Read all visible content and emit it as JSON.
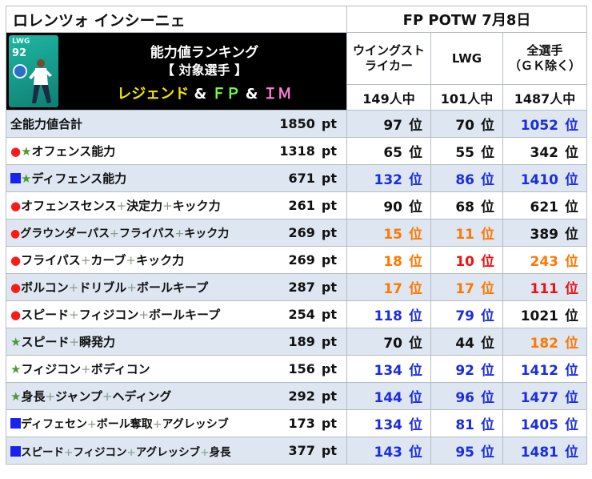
{
  "header": {
    "player_name": "ロレンツォ インシーニェ",
    "event": "FP POTW 7月8日"
  },
  "card": {
    "position": "LWG",
    "rating": "92"
  },
  "banner": {
    "title": "能力値ランキング",
    "subtitle": "【 対象選手 】",
    "legend": "レジェンド",
    "amp": "&",
    "fp": "ＦＰ",
    "im": "ＩＭ"
  },
  "columns": [
    {
      "label_line1": "ウイングスト",
      "label_line2": "ライカー",
      "count": "149人中"
    },
    {
      "label_line1": "LWG",
      "label_line2": "",
      "count": "101人中"
    },
    {
      "label_line1": "全選手",
      "label_line2": "（ＧＫ除く）",
      "count": "1487人中"
    }
  ],
  "rank_unit": "位",
  "value_unit": "pt",
  "colors": {
    "blue": "#1b2de0",
    "orange": "#ff7800",
    "red": "#ee1111",
    "row_alt": "#dde6f1"
  },
  "rows": [
    {
      "marks": [],
      "parts": [
        "全能力値合計"
      ],
      "value": "1850",
      "ranks": [
        {
          "v": "97",
          "c": "black"
        },
        {
          "v": "70",
          "c": "black"
        },
        {
          "v": "1052",
          "c": "blue"
        }
      ]
    },
    {
      "marks": [
        "dot",
        "star"
      ],
      "parts": [
        "オフェンス能力"
      ],
      "value": "1318",
      "ranks": [
        {
          "v": "65",
          "c": "black"
        },
        {
          "v": "55",
          "c": "black"
        },
        {
          "v": "342",
          "c": "black"
        }
      ]
    },
    {
      "marks": [
        "sq",
        "star"
      ],
      "parts": [
        "ディフェンス能力"
      ],
      "value": "671",
      "ranks": [
        {
          "v": "132",
          "c": "blue"
        },
        {
          "v": "86",
          "c": "blue"
        },
        {
          "v": "1410",
          "c": "blue"
        }
      ]
    },
    {
      "marks": [
        "dot"
      ],
      "parts": [
        "オフェンスセンス",
        "決定力",
        "キック力"
      ],
      "value": "261",
      "ranks": [
        {
          "v": "90",
          "c": "black"
        },
        {
          "v": "68",
          "c": "black"
        },
        {
          "v": "621",
          "c": "black"
        }
      ]
    },
    {
      "marks": [
        "dot"
      ],
      "parts": [
        "グラウンダーパス",
        "フライパス",
        "キック力"
      ],
      "value": "269",
      "small": true,
      "ranks": [
        {
          "v": "15",
          "c": "orange"
        },
        {
          "v": "11",
          "c": "orange"
        },
        {
          "v": "389",
          "c": "black"
        }
      ]
    },
    {
      "marks": [
        "dot"
      ],
      "parts": [
        "フライパス",
        "カーブ",
        "キック力"
      ],
      "value": "269",
      "ranks": [
        {
          "v": "18",
          "c": "orange"
        },
        {
          "v": "10",
          "c": "red"
        },
        {
          "v": "243",
          "c": "orange"
        }
      ]
    },
    {
      "marks": [
        "dot"
      ],
      "parts": [
        "ボルコン",
        "ドリブル",
        "ボールキープ"
      ],
      "value": "287",
      "ranks": [
        {
          "v": "17",
          "c": "orange"
        },
        {
          "v": "17",
          "c": "orange"
        },
        {
          "v": "111",
          "c": "red"
        }
      ]
    },
    {
      "marks": [
        "dot"
      ],
      "parts": [
        "スピード",
        "フィジコン",
        "ボールキープ"
      ],
      "value": "254",
      "ranks": [
        {
          "v": "118",
          "c": "blue"
        },
        {
          "v": "79",
          "c": "blue"
        },
        {
          "v": "1021",
          "c": "black"
        }
      ]
    },
    {
      "marks": [
        "star"
      ],
      "parts": [
        "スピード",
        "瞬発力"
      ],
      "value": "189",
      "ranks": [
        {
          "v": "70",
          "c": "black"
        },
        {
          "v": "44",
          "c": "black"
        },
        {
          "v": "182",
          "c": "orange"
        }
      ]
    },
    {
      "marks": [
        "star"
      ],
      "parts": [
        "フィジコン",
        "ボディコン"
      ],
      "value": "156",
      "ranks": [
        {
          "v": "134",
          "c": "blue"
        },
        {
          "v": "92",
          "c": "blue"
        },
        {
          "v": "1412",
          "c": "blue"
        }
      ]
    },
    {
      "marks": [
        "star"
      ],
      "parts": [
        "身長",
        "ジャンプ",
        "ヘディング"
      ],
      "value": "292",
      "ranks": [
        {
          "v": "144",
          "c": "blue"
        },
        {
          "v": "96",
          "c": "blue"
        },
        {
          "v": "1477",
          "c": "blue"
        }
      ]
    },
    {
      "marks": [
        "sq"
      ],
      "parts": [
        "ディフェセン",
        "ボール奪取",
        "アグレッシブ"
      ],
      "value": "173",
      "small": true,
      "ranks": [
        {
          "v": "134",
          "c": "blue"
        },
        {
          "v": "81",
          "c": "blue"
        },
        {
          "v": "1405",
          "c": "blue"
        }
      ]
    },
    {
      "marks": [
        "sq"
      ],
      "parts": [
        "スピード",
        "フィジコン",
        "アグレッシブ",
        "身長"
      ],
      "value": "377",
      "small": true,
      "ranks": [
        {
          "v": "143",
          "c": "blue"
        },
        {
          "v": "95",
          "c": "blue"
        },
        {
          "v": "1481",
          "c": "blue"
        }
      ]
    }
  ]
}
